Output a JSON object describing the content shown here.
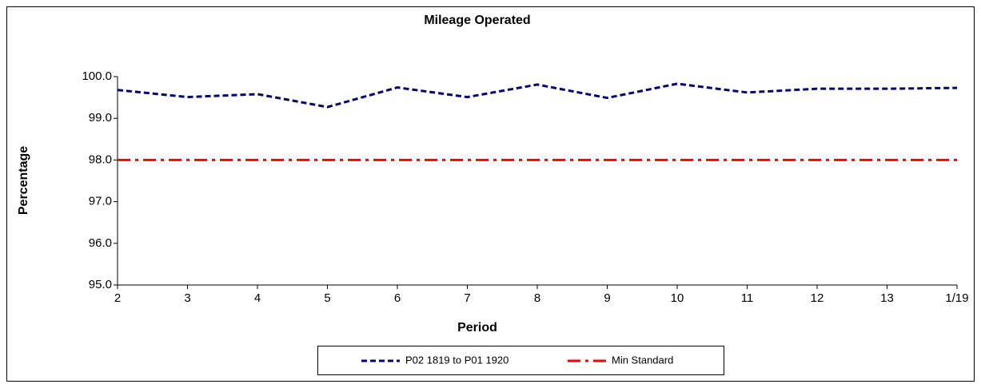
{
  "chart_data": {
    "type": "line",
    "title": "Mileage Operated",
    "x_label": "Period",
    "y_label": "Percentage",
    "categories": [
      "2",
      "3",
      "4",
      "5",
      "6",
      "7",
      "8",
      "9",
      "10",
      "11",
      "12",
      "13",
      "1/19"
    ],
    "series": [
      {
        "name": "P02 1819 to P01 1920",
        "color": "#000080",
        "line_style": "dashed",
        "values": [
          99.68,
          99.51,
          99.58,
          99.27,
          99.74,
          99.51,
          99.81,
          99.49,
          99.83,
          99.62,
          99.71,
          99.71,
          99.73
        ]
      },
      {
        "name": "Min Standard",
        "color": "#ff0000",
        "line_style": "dash-dot",
        "values": [
          98,
          98,
          98,
          98,
          98,
          98,
          98,
          98,
          98,
          98,
          98,
          98,
          98
        ]
      }
    ],
    "ylim": [
      95,
      100
    ],
    "yticks": [
      {
        "value": 95,
        "label": "95.0"
      },
      {
        "value": 96,
        "label": "96.0"
      },
      {
        "value": 97,
        "label": "97.0"
      },
      {
        "value": 98,
        "label": "98.0"
      },
      {
        "value": 99,
        "label": "99.0"
      },
      {
        "value": 100,
        "label": "100.0"
      }
    ],
    "grid": false,
    "legend_position": "bottom"
  }
}
